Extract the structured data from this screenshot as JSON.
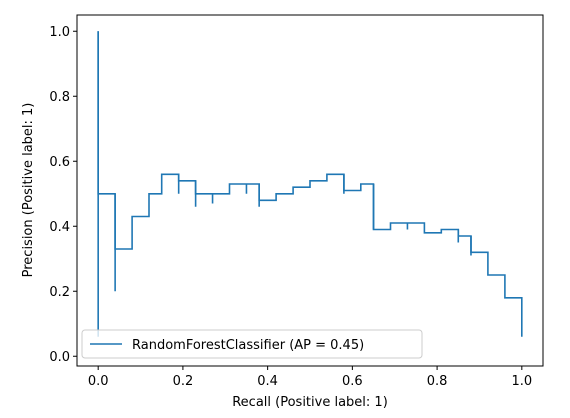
{
  "chart_data": {
    "type": "line",
    "step": "post",
    "xlabel": "Recall (Positive label: 1)",
    "ylabel": "Precision (Positive label: 1)",
    "xlim": [
      -0.05,
      1.05
    ],
    "ylim": [
      -0.03,
      1.05
    ],
    "xticks": [
      0.0,
      0.2,
      0.4,
      0.6,
      0.8,
      1.0
    ],
    "xtick_labels": [
      "0.0",
      "0.2",
      "0.4",
      "0.6",
      "0.8",
      "1.0"
    ],
    "yticks": [
      0.0,
      0.2,
      0.4,
      0.6,
      0.8,
      1.0
    ],
    "ytick_labels": [
      "0.0",
      "0.2",
      "0.4",
      "0.6",
      "0.8",
      "1.0"
    ],
    "grid": false,
    "legend_position": "lower-left",
    "color": "#1f77b4",
    "series": [
      {
        "name": "RandomForestClassifier (AP = 0.45)",
        "recall": [
          1.0,
          1.0,
          0.96,
          0.96,
          0.92,
          0.92,
          0.88,
          0.88,
          0.85,
          0.85,
          0.81,
          0.81,
          0.77,
          0.77,
          0.73,
          0.73,
          0.69,
          0.69,
          0.65,
          0.65,
          0.62,
          0.62,
          0.58,
          0.58,
          0.54,
          0.54,
          0.5,
          0.5,
          0.46,
          0.46,
          0.42,
          0.42,
          0.38,
          0.38,
          0.35,
          0.35,
          0.31,
          0.31,
          0.27,
          0.27,
          0.23,
          0.23,
          0.19,
          0.19,
          0.15,
          0.15,
          0.12,
          0.12,
          0.08,
          0.08,
          0.04,
          0.04,
          0.0,
          0.0
        ],
        "precision": [
          0.06,
          0.18,
          0.18,
          0.25,
          0.25,
          0.32,
          0.32,
          0.37,
          0.37,
          0.39,
          0.39,
          0.38,
          0.38,
          0.41,
          0.41,
          0.41,
          0.41,
          0.39,
          0.39,
          0.53,
          0.53,
          0.51,
          0.51,
          0.56,
          0.56,
          0.54,
          0.54,
          0.52,
          0.52,
          0.5,
          0.5,
          0.48,
          0.48,
          0.53,
          0.53,
          0.53,
          0.53,
          0.5,
          0.5,
          0.5,
          0.5,
          0.54,
          0.54,
          0.56,
          0.56,
          0.5,
          0.5,
          0.43,
          0.43,
          0.33,
          0.33,
          0.5,
          0.5,
          1.0
        ]
      }
    ],
    "tick_dips": [
      {
        "x": 0.04,
        "y": 0.2
      },
      {
        "x": 0.19,
        "y": 0.5
      },
      {
        "x": 0.23,
        "y": 0.46
      },
      {
        "x": 0.27,
        "y": 0.47
      },
      {
        "x": 0.35,
        "y": 0.5
      },
      {
        "x": 0.38,
        "y": 0.46
      },
      {
        "x": 0.58,
        "y": 0.5
      },
      {
        "x": 0.65,
        "y": 0.39
      },
      {
        "x": 0.73,
        "y": 0.39
      },
      {
        "x": 0.85,
        "y": 0.35
      },
      {
        "x": 0.88,
        "y": 0.31
      }
    ],
    "vertical_start": {
      "x": 0.0,
      "y_from": 0.06,
      "y_to": 1.0
    }
  }
}
